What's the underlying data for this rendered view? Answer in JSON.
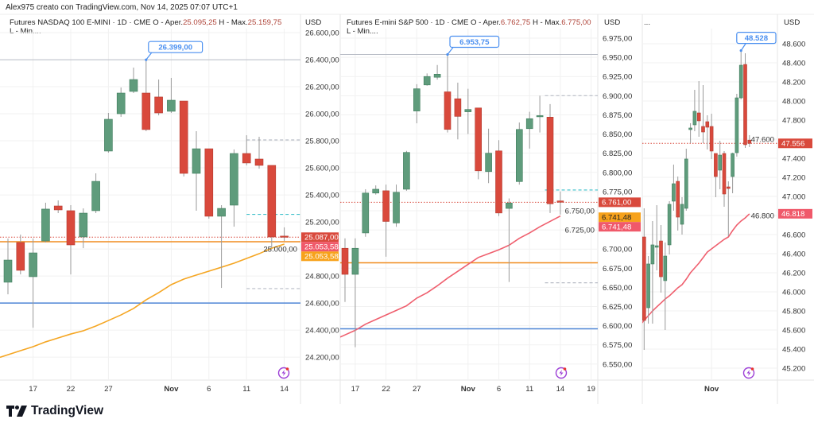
{
  "attribution": "Alex975 creato con TradingView.com, Nov 14, 2025 07:07 UTC+1",
  "logo": "TradingView",
  "colors": {
    "up": "#5f9c7c",
    "down": "#d9493c",
    "wick": "#9a9a9a",
    "grid": "#f1f1f1",
    "callout": "#4a8ff0"
  },
  "chart_data": [
    {
      "type": "candlestick",
      "title": "Futures NASDAQ 100 E-MINI · 1D · CME",
      "open_label": "O - Aper.",
      "open_value": "25.095,25",
      "high_label": "H - Max.",
      "high_value": "25.159,75",
      "low_label": "L - Min....",
      "currency": "USD",
      "y_ticks": [
        "26.600,00",
        "26.400,00",
        "26.200,00",
        "26.000,00",
        "25.800,00",
        "25.600,00",
        "25.400,00",
        "25.200,00",
        "25.000,00",
        "24.800,00",
        "24.600,00",
        "24.400,00",
        "24.200,00"
      ],
      "x_ticks": [
        {
          "label": "17",
          "index": 2
        },
        {
          "label": "22",
          "index": 5
        },
        {
          "label": "27",
          "index": 8
        },
        {
          "label": "Nov",
          "index": 13,
          "bold": true
        },
        {
          "label": "6",
          "index": 16
        },
        {
          "label": "11",
          "index": 19
        },
        {
          "label": "14",
          "index": 22
        }
      ],
      "candles_ohlc": [
        [
          24754,
          25077,
          24665,
          24918
        ],
        [
          25048,
          25106,
          24812,
          24842
        ],
        [
          24795,
          25077,
          24418,
          24971
        ],
        [
          25059,
          25342,
          25048,
          25295
        ],
        [
          25318,
          25359,
          25265,
          25289
        ],
        [
          25283,
          25324,
          24812,
          25030
        ],
        [
          25089,
          25300,
          25006,
          25265
        ],
        [
          25283,
          25559,
          25265,
          25500
        ],
        [
          25724,
          26006,
          25712,
          25959
        ],
        [
          26000,
          26194,
          25977,
          26153
        ],
        [
          26165,
          26341,
          26153,
          26253
        ],
        [
          26153,
          26399,
          25871,
          25883
        ],
        [
          26124,
          26253,
          25988,
          26006
        ],
        [
          26018,
          26265,
          26006,
          26100
        ],
        [
          26094,
          26094,
          25536,
          25559
        ],
        [
          25559,
          25871,
          25283,
          25741
        ],
        [
          25741,
          25741,
          25224,
          25242
        ],
        [
          25242,
          25324,
          24712,
          25300
        ],
        [
          25324,
          25736,
          25165,
          25706
        ],
        [
          25706,
          25841,
          25618,
          25636
        ],
        [
          25665,
          25830,
          25594,
          25618
        ],
        [
          25618,
          25618,
          25006,
          25089
        ],
        [
          25095.25,
          25159.75,
          25059,
          25087
        ]
      ],
      "sma": [
        24218,
        24248,
        24277,
        24313,
        24342,
        24371,
        24395,
        24430,
        24471,
        24512,
        24560,
        24624,
        24677,
        24736,
        24777,
        24807,
        24836,
        24865,
        24895,
        24930,
        24965,
        25006,
        25036
      ],
      "sma_color": "#f5a623",
      "hlines": [
        {
          "price": 26399,
          "color": "#b8bcc6",
          "style": "solid"
        },
        {
          "price": 25053.58,
          "color": "#f08c1e",
          "style": "solid"
        },
        {
          "price": 24600,
          "color": "#4f86d6",
          "style": "solid"
        },
        {
          "price": 25087,
          "color": "#d9493c",
          "style": "dotted"
        }
      ],
      "projections": [
        {
          "price": 25806,
          "color": "#b8bcc6",
          "from_index": 19
        },
        {
          "price": 25256,
          "color": "#3bbfc9",
          "from_index": 19
        },
        {
          "price": 24707,
          "color": "#b8bcc6",
          "from_index": 19
        }
      ],
      "axis_labels": [
        {
          "text": "25.087,00",
          "price": 25087,
          "bg": "#d9493c"
        },
        {
          "text": "25.053,58",
          "price": 25053.58,
          "bg": "#f0596a"
        },
        {
          "text": "25.053,58",
          "price": 25053.58,
          "bg": "#f7a21b"
        }
      ],
      "callout": {
        "text": "26.399,00",
        "price": 26399,
        "index": 11
      }
    },
    {
      "type": "candlestick",
      "title": "Futures E-mini S&P 500 · 1D · CME",
      "open_label": "O - Aper.",
      "open_value": "6.762,75",
      "high_label": "H - Max.",
      "high_value": "6.775,00",
      "low_label": "L - Min....",
      "currency": "USD",
      "y_ticks": [
        "6.975,00",
        "6.950,00",
        "6.925,00",
        "6.900,00",
        "6.875,00",
        "6.850,00",
        "6.825,00",
        "6.800,00",
        "6.775,00",
        "6.750,00",
        "6.725,00",
        "6.700,00",
        "6.675,00",
        "6.650,00",
        "6.625,00",
        "6.600,00",
        "6.575,00",
        "6.550,00"
      ],
      "x_ticks": [
        {
          "label": "17",
          "index": 1
        },
        {
          "label": "22",
          "index": 4
        },
        {
          "label": "27",
          "index": 7
        },
        {
          "label": "Nov",
          "index": 12,
          "bold": true
        },
        {
          "label": "6",
          "index": 15
        },
        {
          "label": "11",
          "index": 18
        },
        {
          "label": "14",
          "index": 21
        },
        {
          "label": "19",
          "index": 24
        }
      ],
      "candles_ohlc": [
        [
          6701,
          6714,
          6631,
          6667
        ],
        [
          6667,
          6714,
          6572,
          6701
        ],
        [
          6721,
          6778,
          6716,
          6773
        ],
        [
          6773,
          6783,
          6771,
          6778
        ],
        [
          6776,
          6784,
          6690,
          6736
        ],
        [
          6734,
          6784,
          6729,
          6774
        ],
        [
          6778,
          6828,
          6776,
          6826
        ],
        [
          6880,
          6915,
          6864,
          6909
        ],
        [
          6914,
          6929,
          6913,
          6925
        ],
        [
          6924,
          6940,
          6921,
          6928
        ],
        [
          6905,
          6953.75,
          6852,
          6856
        ],
        [
          6896,
          6917,
          6843,
          6873
        ],
        [
          6879,
          6909,
          6850,
          6882
        ],
        [
          6884,
          6884,
          6791,
          6802
        ],
        [
          6801,
          6857,
          6786,
          6825
        ],
        [
          6828,
          6842,
          6743,
          6747
        ],
        [
          6753,
          6766,
          6657,
          6760
        ],
        [
          6788,
          6865,
          6784,
          6856
        ],
        [
          6857,
          6879,
          6831,
          6870
        ],
        [
          6873,
          6900,
          6852,
          6874
        ],
        [
          6872,
          6889,
          6747,
          6759
        ],
        [
          6762.75,
          6775,
          6745,
          6761
        ]
      ],
      "sma": [
        6588,
        6594,
        6602,
        6608,
        6614,
        6620,
        6626,
        6636,
        6643,
        6652,
        6662,
        6671,
        6680,
        6689,
        6694,
        6699,
        6705,
        6714,
        6721,
        6729,
        6736,
        6743
      ],
      "sma_color": "#ef5f6e",
      "hlines": [
        {
          "price": 6953.75,
          "color": "#b8bcc6",
          "style": "solid"
        },
        {
          "price": 6682,
          "color": "#f08c1e",
          "style": "solid"
        },
        {
          "price": 6596,
          "color": "#4f86d6",
          "style": "solid"
        },
        {
          "price": 6761,
          "color": "#d9493c",
          "style": "dotted"
        }
      ],
      "projections": [
        {
          "price": 6900,
          "color": "#b8bcc6",
          "from_index": 19.5
        },
        {
          "price": 6777,
          "color": "#3bbfc9",
          "from_index": 19.5
        },
        {
          "price": 6656,
          "color": "#b8bcc6",
          "from_index": 19.5
        }
      ],
      "axis_labels": [
        {
          "text": "6.761,00",
          "price": 6761,
          "bg": "#d9493c"
        },
        {
          "text": "6.741,48",
          "price": 6741.48,
          "bg": "#f7a21b",
          "fg": "#222"
        },
        {
          "text": "6.741,48",
          "price": 6741.48,
          "bg": "#f0596a"
        }
      ],
      "callout": {
        "text": "6.953,75",
        "price": 6953.75,
        "index": 10
      }
    },
    {
      "type": "candlestick",
      "title": "...",
      "currency": "USD",
      "y_ticks": [
        "48.600",
        "48.400",
        "48.200",
        "48.000",
        "47.800",
        "47.600",
        "47.400",
        "47.200",
        "47.000",
        "46.800",
        "46.600",
        "46.400",
        "46.200",
        "46.000",
        "45.800",
        "45.600",
        "45.400",
        "45.200"
      ],
      "x_ticks": [
        {
          "label": "Nov",
          "index": 17,
          "bold": true
        }
      ],
      "candles_ohlc": [
        [
          46875,
          46933,
          46517,
          46583
        ],
        [
          46575,
          46875,
          45392,
          45700
        ],
        [
          45833,
          46375,
          45667,
          46292
        ],
        [
          46292,
          46742,
          45667,
          46492
        ],
        [
          46467,
          46908,
          46225,
          46483
        ],
        [
          46533,
          46700,
          45992,
          46158
        ],
        [
          46117,
          46517,
          45600,
          46375
        ],
        [
          46492,
          46950,
          46392,
          46917
        ],
        [
          46950,
          47333,
          46850,
          47133
        ],
        [
          47158,
          47208,
          46642,
          46783
        ],
        [
          46708,
          46992,
          46600,
          46917
        ],
        [
          46875,
          47500,
          46850,
          47392
        ],
        [
          47700,
          47767,
          47558,
          47717
        ],
        [
          47750,
          48117,
          47683,
          47892
        ],
        [
          47875,
          48208,
          47625,
          47792
        ],
        [
          47733,
          48167,
          47558,
          47675
        ],
        [
          47783,
          47850,
          47492,
          47725
        ],
        [
          47733,
          47867,
          47392,
          47475
        ],
        [
          47450,
          47450,
          46992,
          47208
        ],
        [
          47275,
          47583,
          47075,
          47433
        ],
        [
          47450,
          47475,
          46892,
          47025
        ],
        [
          47100,
          47158,
          46583,
          47083
        ],
        [
          47208,
          47458,
          47033,
          47450
        ],
        [
          47458,
          48075,
          47417,
          48033
        ],
        [
          48033,
          48528,
          48017,
          48375
        ],
        [
          48383,
          48500,
          47508,
          47542
        ],
        [
          47590,
          47642,
          47517,
          47556
        ]
      ],
      "sma": [
        45650,
        45700,
        45750,
        45800,
        45842,
        45883,
        45925,
        45958,
        46000,
        46042,
        46075,
        46133,
        46200,
        46250,
        46300,
        46358,
        46417,
        46450,
        46483,
        46517,
        46550,
        46575,
        46642,
        46700,
        46742,
        46775,
        46817
      ],
      "sma_color": "#ef5f6e",
      "hlines": [
        {
          "price": 47556,
          "color": "#d9493c",
          "style": "dotted"
        }
      ],
      "projections": [],
      "axis_labels": [
        {
          "text": "47.556",
          "price": 47556,
          "bg": "#d9493c"
        },
        {
          "text": "46.818",
          "price": 46818,
          "bg": "#f0596a"
        }
      ],
      "callout": {
        "text": "48.528",
        "price": 48528,
        "index": 24
      }
    }
  ]
}
